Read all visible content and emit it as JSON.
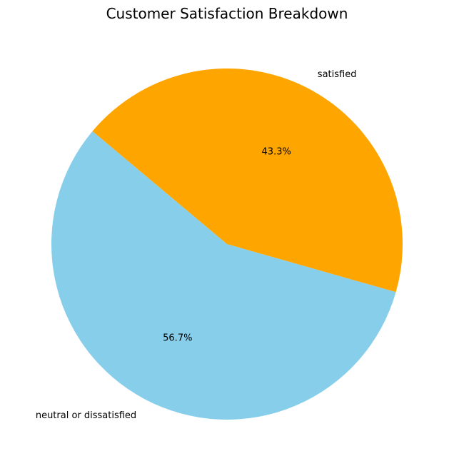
{
  "chart_data": {
    "type": "pie",
    "title": "Customer Satisfaction Breakdown",
    "slices": [
      {
        "label": "neutral or dissatisfied",
        "value": 56.7,
        "display": "56.7%",
        "color": "#87CEEB"
      },
      {
        "label": "satisfied",
        "value": 43.3,
        "display": "43.3%",
        "color": "#FFA500"
      }
    ],
    "start_angle_deg": 140,
    "direction": "counterclockwise",
    "legend": "none"
  }
}
